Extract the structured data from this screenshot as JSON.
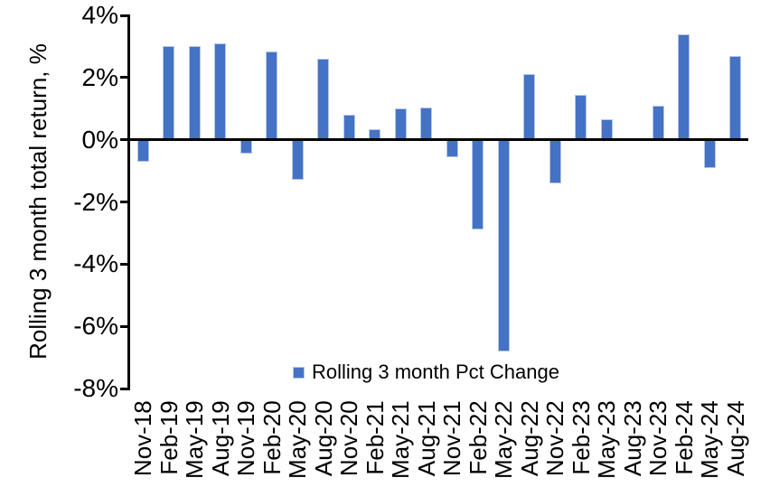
{
  "chart_data": {
    "type": "bar",
    "title": "",
    "xlabel": "",
    "ylabel": "Rolling 3 month total return, %",
    "legend": "Rolling 3 month Pct Change",
    "legend_position": "bottom-center-inside",
    "grid": false,
    "ylim": [
      -8,
      4
    ],
    "y_ticks": [
      4,
      2,
      0,
      -2,
      -4,
      -6,
      -8
    ],
    "y_tick_labels": [
      "4%",
      "2%",
      "0%",
      "-2%",
      "-4%",
      "-6%",
      "-8%"
    ],
    "categories": [
      "Nov-18",
      "Feb-19",
      "May-19",
      "Aug-19",
      "Nov-19",
      "Feb-20",
      "May-20",
      "Aug-20",
      "Nov-20",
      "Feb-21",
      "May-21",
      "Aug-21",
      "Nov-21",
      "Feb-22",
      "May-22",
      "Aug-22",
      "Nov-22",
      "Feb-23",
      "May-23",
      "Aug-23",
      "Nov-23",
      "Feb-24",
      "May-24",
      "Aug-24"
    ],
    "values": [
      -0.7,
      3.0,
      3.0,
      3.1,
      -0.45,
      2.85,
      -1.3,
      2.6,
      0.8,
      0.35,
      1.0,
      1.05,
      -0.55,
      -2.9,
      -6.8,
      2.1,
      -1.4,
      1.45,
      0.65,
      0.0,
      1.1,
      3.4,
      -0.9,
      2.7
    ],
    "bar_color": "#4472C4",
    "bar_border_color": "#B4C7E7",
    "axis_color": "#000000",
    "text_color": "#000000",
    "background_color": "#FFFFFF"
  }
}
